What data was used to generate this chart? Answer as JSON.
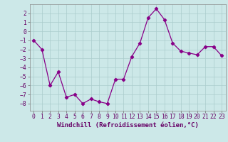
{
  "x": [
    0,
    1,
    2,
    3,
    4,
    5,
    6,
    7,
    8,
    9,
    10,
    11,
    12,
    13,
    14,
    15,
    16,
    17,
    18,
    19,
    20,
    21,
    22,
    23
  ],
  "y": [
    -1,
    -2,
    -6,
    -4.5,
    -7.3,
    -7.0,
    -8.0,
    -7.5,
    -7.8,
    -8.0,
    -5.3,
    -5.3,
    -2.8,
    -1.3,
    1.5,
    2.5,
    1.3,
    -1.3,
    -2.2,
    -2.4,
    -2.6,
    -1.7,
    -1.7,
    -2.7
  ],
  "line_color": "#880088",
  "marker": "D",
  "marker_size": 2.2,
  "bg_color": "#cce8e8",
  "grid_color": "#aacccc",
  "xlabel": "Windchill (Refroidissement éolien,°C)",
  "xlabel_fontsize": 6.5,
  "tick_fontsize": 5.8,
  "ylim": [
    -8.8,
    3.0
  ],
  "xlim": [
    -0.5,
    23.5
  ],
  "yticks": [
    -8,
    -7,
    -6,
    -5,
    -4,
    -3,
    -2,
    -1,
    0,
    1,
    2
  ],
  "xticks": [
    0,
    1,
    2,
    3,
    4,
    5,
    6,
    7,
    8,
    9,
    10,
    11,
    12,
    13,
    14,
    15,
    16,
    17,
    18,
    19,
    20,
    21,
    22,
    23
  ]
}
